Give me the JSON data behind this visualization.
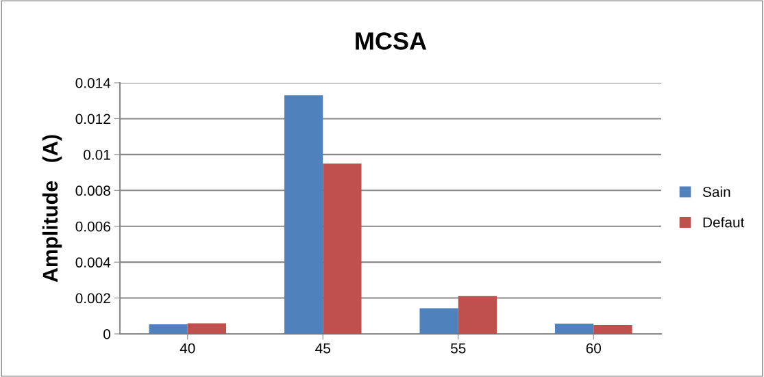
{
  "chart_data": {
    "type": "bar",
    "title": "MCSA",
    "ylabel": "Amplitude   (A)",
    "categories": [
      "40",
      "45",
      "55",
      "60"
    ],
    "series": [
      {
        "name": "Sain",
        "color": "#4f81bd",
        "values": [
          0.00053,
          0.0133,
          0.00143,
          0.00057
        ]
      },
      {
        "name": "Defaut",
        "color": "#c0504d",
        "values": [
          0.00059,
          0.0095,
          0.00211,
          0.0005
        ]
      }
    ],
    "ylim": [
      0,
      0.014
    ],
    "yticks": [
      0,
      0.002,
      0.004,
      0.006,
      0.008,
      0.01,
      0.012,
      0.014
    ],
    "grid": "y",
    "legend": "right"
  }
}
